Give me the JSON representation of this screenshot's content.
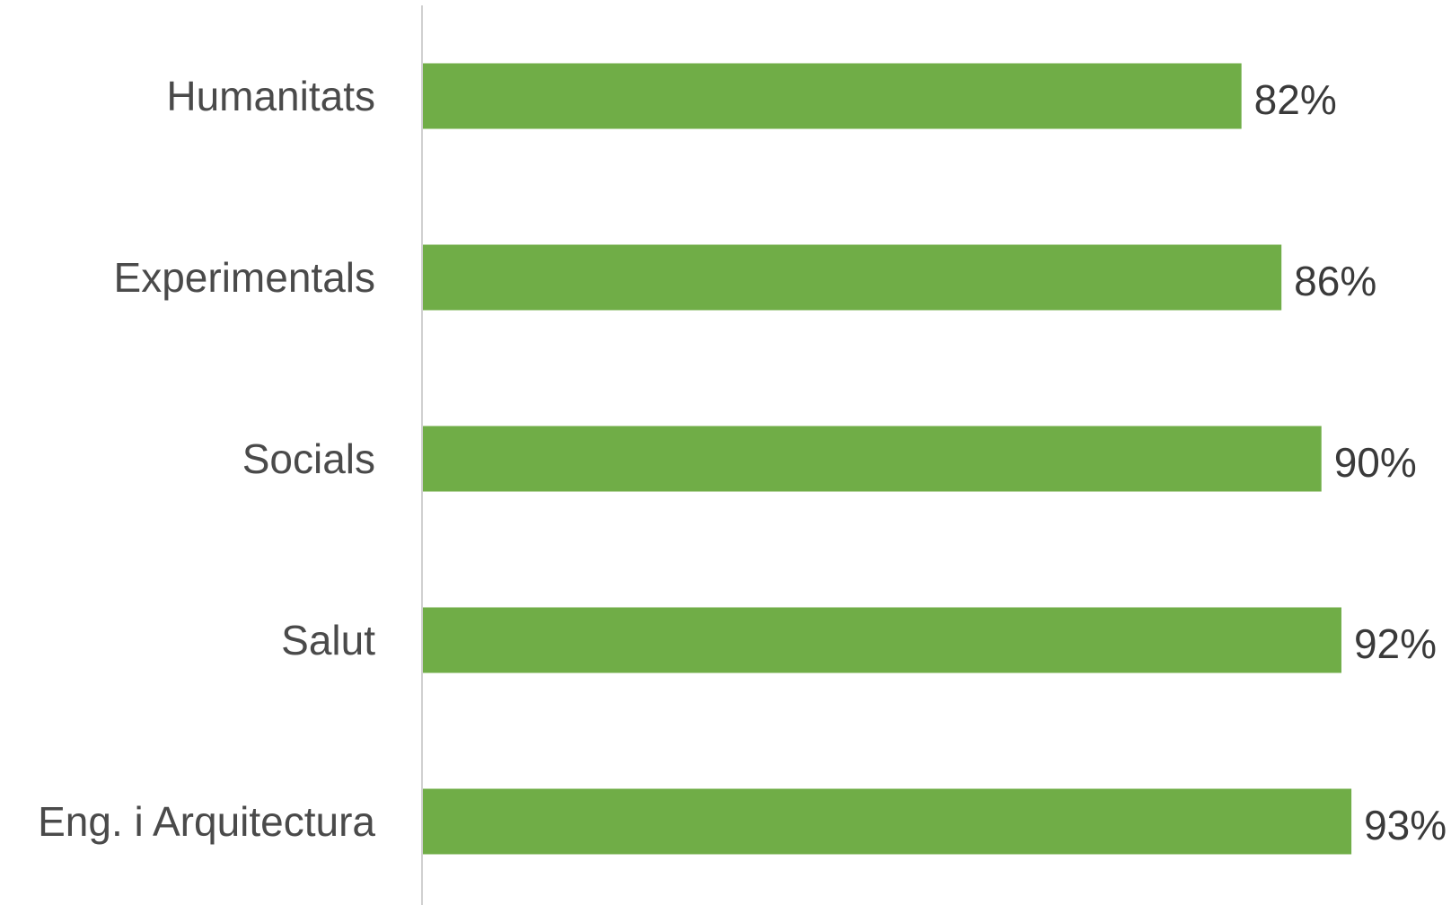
{
  "chart_data": {
    "type": "bar",
    "orientation": "horizontal",
    "categories": [
      "Humanitats",
      "Experimentals",
      "Socials",
      "Salut",
      "Eng. i Arquitectura"
    ],
    "values": [
      82,
      86,
      90,
      92,
      93
    ],
    "value_labels": [
      "82%",
      "86%",
      "90%",
      "92%",
      "93%"
    ],
    "unit": "%",
    "bar_color": "#70ad47",
    "axis_line_color": "#d0d0d0",
    "xlim": [
      0,
      100
    ],
    "grid": false,
    "legend": "none",
    "title": ""
  }
}
